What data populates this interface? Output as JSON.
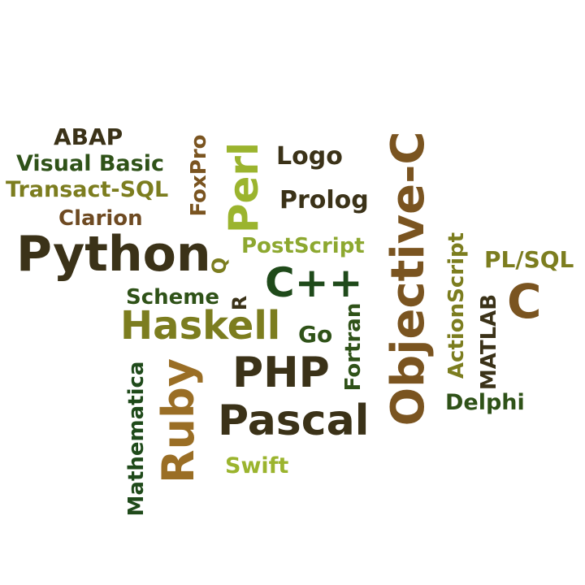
{
  "words": {
    "abap": "ABAP",
    "visual_basic": "Visual Basic",
    "transact_sql": "Transact-SQL",
    "clarion": "Clarion",
    "python": "Python",
    "foxpro": "FoxPro",
    "perl": "Perl",
    "logo": "Logo",
    "prolog": "Prolog",
    "objective_c": "Objective-C",
    "postscript": "PostScript",
    "q": "Q",
    "actionscript": "ActionScript",
    "pl_sql": "PL/SQL",
    "cpp": "C++",
    "scheme": "Scheme",
    "r": "R",
    "c": "C",
    "haskell": "Haskell",
    "go": "Go",
    "fortran": "Fortran",
    "matlab": "MATLAB",
    "mathematica": "Mathematica",
    "ruby": "Ruby",
    "php": "PHP",
    "delphi": "Delphi",
    "pascal": "Pascal",
    "swift": "Swift"
  },
  "colors": {
    "dark": "#3b3218",
    "green": "#2f5218",
    "olive": "#7c7d1f",
    "lime": "#8da830",
    "brown": "#7a5420",
    "gold": "#9a6e25"
  }
}
